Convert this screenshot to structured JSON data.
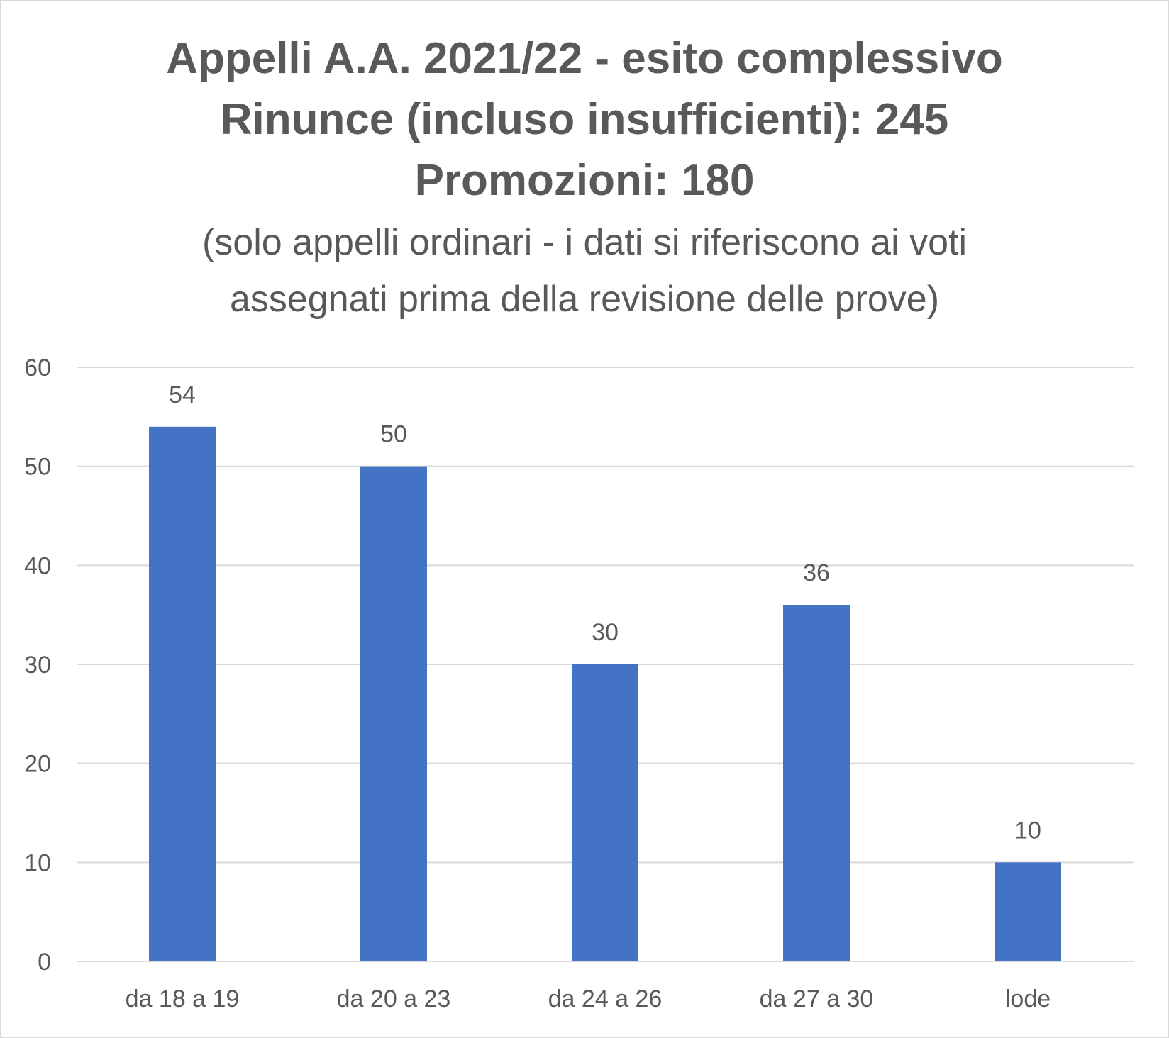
{
  "chart_data": {
    "type": "bar",
    "title_lines": [
      "Appelli A.A. 2021/22 - esito complessivo",
      "Rinunce (incluso insufficienti): 245",
      "Promozioni: 180"
    ],
    "subtitle_lines": [
      "(solo appelli ordinari - i dati si riferiscono ai voti",
      "assegnati prima della revisione delle prove)"
    ],
    "categories": [
      "da 18 a 19",
      "da 20 a 23",
      "da 24 a 26",
      "da 27 a 30",
      "lode"
    ],
    "values": [
      54,
      50,
      30,
      36,
      10
    ],
    "data_labels": [
      "54",
      "50",
      "30",
      "36",
      "10"
    ],
    "y_ticks": [
      0,
      10,
      20,
      30,
      40,
      50,
      60
    ],
    "ylim": [
      0,
      60
    ],
    "xlabel": "",
    "ylabel": "",
    "grid": true,
    "legend": "none",
    "colors": {
      "bar": "#4472c4",
      "text": "#595959",
      "grid": "#d9d9d9",
      "border": "#d9d9d9"
    }
  }
}
